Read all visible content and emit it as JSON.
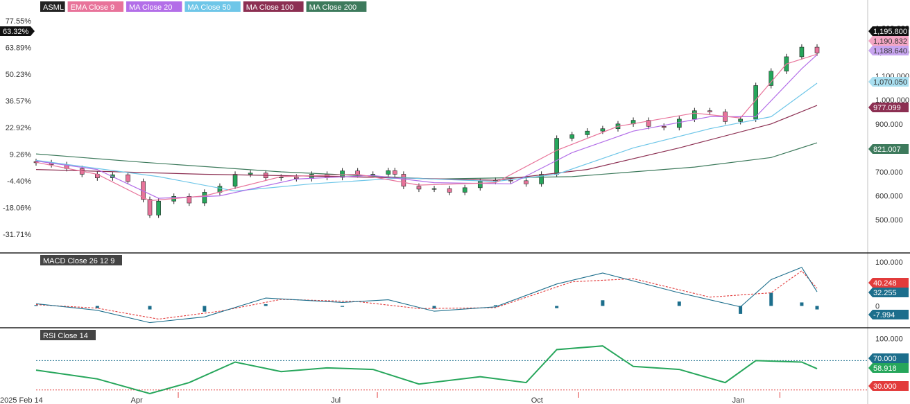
{
  "chart_data": {
    "type": "candlestick",
    "symbol": "ASML",
    "date_axis": {
      "start_label": "2025 Feb 14",
      "labels": [
        "2025 Feb 14",
        "Apr",
        "Jul",
        "Oct",
        "Jan"
      ]
    },
    "price_pane": {
      "legend": [
        {
          "name": "ASML",
          "color": "#222222"
        },
        {
          "name": "EMA Close 9",
          "color": "#e8739a"
        },
        {
          "name": "MA Close 20",
          "color": "#b36ee8"
        },
        {
          "name": "MA Close 50",
          "color": "#6ec6e8"
        },
        {
          "name": "MA Close 100",
          "color": "#8c2f52"
        },
        {
          "name": "MA Close 200",
          "color": "#3d7a5c"
        }
      ],
      "left_axis_ticks": [
        "77.55%",
        "63.89%",
        "50.23%",
        "36.57%",
        "22.92%",
        "9.26%",
        "-4.40%",
        "-18.06%",
        "-31.71%"
      ],
      "right_axis_ticks": [
        "1,300.000",
        "1,200.000",
        "1,100.000",
        "1,000.000",
        "900.000",
        "800.000",
        "700.000",
        "600.000",
        "500.000"
      ],
      "left_marker": {
        "value": "63.32%",
        "color": "#111111"
      },
      "value_badges": [
        {
          "text": "1,195.800",
          "color": "#111111",
          "text_color": "#ffffff",
          "price": 1195.8
        },
        {
          "text": "1,190.832",
          "color": "#f4a6c4",
          "text_color": "#333333",
          "price": 1190.832
        },
        {
          "text": "1,188.640",
          "color": "#c8a6f0",
          "text_color": "#333333",
          "price": 1188.64
        },
        {
          "text": "1,070.050",
          "color": "#a9dff0",
          "text_color": "#333333",
          "price": 1070.05
        },
        {
          "text": "977.099",
          "color": "#8c2f52",
          "text_color": "#ffffff",
          "price": 977.099
        },
        {
          "text": "821.007",
          "color": "#3d7a5c",
          "text_color": "#ffffff",
          "price": 821.007
        }
      ],
      "ylim": [
        440,
        1330
      ],
      "close_series": [
        [
          "2025-02-14",
          738
        ],
        [
          "2025-02-21",
          730
        ],
        [
          "2025-02-28",
          714
        ],
        [
          "2025-03-07",
          690
        ],
        [
          "2025-03-14",
          675
        ],
        [
          "2025-03-21",
          688
        ],
        [
          "2025-03-28",
          660
        ],
        [
          "2025-04-04",
          585
        ],
        [
          "2025-04-07",
          520
        ],
        [
          "2025-04-11",
          578
        ],
        [
          "2025-04-18",
          598
        ],
        [
          "2025-04-25",
          570
        ],
        [
          "2025-05-02",
          615
        ],
        [
          "2025-05-09",
          640
        ],
        [
          "2025-05-16",
          690
        ],
        [
          "2025-05-23",
          695
        ],
        [
          "2025-05-30",
          675
        ],
        [
          "2025-06-06",
          678
        ],
        [
          "2025-06-13",
          672
        ],
        [
          "2025-06-20",
          690
        ],
        [
          "2025-06-27",
          677
        ],
        [
          "2025-07-04",
          704
        ],
        [
          "2025-07-11",
          688
        ],
        [
          "2025-07-18",
          690
        ],
        [
          "2025-07-25",
          705
        ],
        [
          "2025-07-28",
          690
        ],
        [
          "2025-08-01",
          640
        ],
        [
          "2025-08-08",
          628
        ],
        [
          "2025-08-15",
          630
        ],
        [
          "2025-08-22",
          615
        ],
        [
          "2025-08-29",
          634
        ],
        [
          "2025-09-05",
          660
        ],
        [
          "2025-09-12",
          665
        ],
        [
          "2025-09-19",
          663
        ],
        [
          "2025-09-26",
          650
        ],
        [
          "2025-10-03",
          690
        ],
        [
          "2025-10-10",
          840
        ],
        [
          "2025-10-17",
          855
        ],
        [
          "2025-10-24",
          870
        ],
        [
          "2025-10-31",
          880
        ],
        [
          "2025-11-07",
          900
        ],
        [
          "2025-11-14",
          915
        ],
        [
          "2025-11-21",
          890
        ],
        [
          "2025-11-28",
          885
        ],
        [
          "2025-12-05",
          920
        ],
        [
          "2025-12-12",
          955
        ],
        [
          "2025-12-19",
          950
        ],
        [
          "2025-12-26",
          910
        ],
        [
          "2026-01-02",
          920
        ],
        [
          "2026-01-09",
          1060
        ],
        [
          "2026-01-16",
          1120
        ],
        [
          "2026-01-23",
          1180
        ],
        [
          "2026-01-30",
          1220
        ],
        [
          "2026-02-06",
          1195.8
        ]
      ],
      "ema9": [
        [
          "2025-02-14",
          740
        ],
        [
          "2025-03-14",
          690
        ],
        [
          "2025-04-07",
          580
        ],
        [
          "2025-05-02",
          600
        ],
        [
          "2025-06-06",
          680
        ],
        [
          "2025-07-11",
          690
        ],
        [
          "2025-08-08",
          645
        ],
        [
          "2025-09-12",
          655
        ],
        [
          "2025-10-10",
          790
        ],
        [
          "2025-11-07",
          890
        ],
        [
          "2025-12-12",
          945
        ],
        [
          "2026-01-02",
          925
        ],
        [
          "2026-01-23",
          1150
        ],
        [
          "2026-02-06",
          1190.832
        ]
      ],
      "ma20": [
        [
          "2025-02-14",
          745
        ],
        [
          "2025-03-14",
          710
        ],
        [
          "2025-04-11",
          590
        ],
        [
          "2025-05-09",
          600
        ],
        [
          "2025-06-13",
          670
        ],
        [
          "2025-07-18",
          685
        ],
        [
          "2025-08-15",
          655
        ],
        [
          "2025-09-19",
          650
        ],
        [
          "2025-10-17",
          780
        ],
        [
          "2025-11-14",
          870
        ],
        [
          "2025-12-19",
          930
        ],
        [
          "2026-01-09",
          930
        ],
        [
          "2026-01-30",
          1130
        ],
        [
          "2026-02-06",
          1188.64
        ]
      ],
      "ma50": [
        [
          "2025-02-14",
          748
        ],
        [
          "2025-04-11",
          680
        ],
        [
          "2025-05-16",
          620
        ],
        [
          "2025-06-20",
          650
        ],
        [
          "2025-08-01",
          675
        ],
        [
          "2025-09-12",
          660
        ],
        [
          "2025-10-10",
          690
        ],
        [
          "2025-11-14",
          800
        ],
        [
          "2025-12-19",
          880
        ],
        [
          "2026-01-16",
          930
        ],
        [
          "2026-02-06",
          1070.05
        ]
      ],
      "ma100": [
        [
          "2025-02-14",
          710
        ],
        [
          "2025-05-02",
          690
        ],
        [
          "2025-07-04",
          680
        ],
        [
          "2025-09-12",
          665
        ],
        [
          "2025-10-24",
          710
        ],
        [
          "2025-12-05",
          800
        ],
        [
          "2026-01-16",
          900
        ],
        [
          "2026-02-06",
          977.099
        ]
      ],
      "ma200": [
        [
          "2025-02-14",
          775
        ],
        [
          "2025-04-04",
          740
        ],
        [
          "2025-06-06",
          700
        ],
        [
          "2025-08-15",
          670
        ],
        [
          "2025-10-17",
          680
        ],
        [
          "2025-12-12",
          720
        ],
        [
          "2026-01-16",
          760
        ],
        [
          "2026-02-06",
          821.007
        ]
      ]
    },
    "macd_pane": {
      "legend": "MACD Close 26 12 9",
      "right_axis_ticks": [
        "100.000",
        "0"
      ],
      "value_badges": [
        {
          "text": "40.248",
          "color": "#e23b3b",
          "text_color": "#ffffff",
          "value": 40.248
        },
        {
          "text": "32.255",
          "color": "#1c6e8c",
          "text_color": "#ffffff",
          "value": 32.255
        },
        {
          "text": "-7.994",
          "color": "#1c6e8c",
          "text_color": "#ffffff",
          "value": -7.994
        }
      ],
      "ylim": [
        -45,
        105
      ],
      "macd": [
        [
          "2025-02-14",
          5
        ],
        [
          "2025-03-14",
          -10
        ],
        [
          "2025-04-07",
          -38
        ],
        [
          "2025-05-02",
          -25
        ],
        [
          "2025-05-30",
          18
        ],
        [
          "2025-07-04",
          8
        ],
        [
          "2025-07-25",
          14
        ],
        [
          "2025-08-15",
          -12
        ],
        [
          "2025-09-12",
          -2
        ],
        [
          "2025-10-10",
          50
        ],
        [
          "2025-10-31",
          75
        ],
        [
          "2025-12-05",
          30
        ],
        [
          "2026-01-02",
          -2
        ],
        [
          "2026-01-16",
          60
        ],
        [
          "2026-01-30",
          88
        ],
        [
          "2026-02-06",
          32.255
        ]
      ],
      "signal": [
        [
          "2025-02-14",
          3
        ],
        [
          "2025-03-14",
          -5
        ],
        [
          "2025-04-11",
          -30
        ],
        [
          "2025-05-09",
          -12
        ],
        [
          "2025-06-06",
          15
        ],
        [
          "2025-07-11",
          10
        ],
        [
          "2025-08-08",
          -6
        ],
        [
          "2025-09-12",
          -4
        ],
        [
          "2025-10-17",
          55
        ],
        [
          "2025-11-14",
          62
        ],
        [
          "2025-12-19",
          20
        ],
        [
          "2026-01-16",
          30
        ],
        [
          "2026-01-30",
          80
        ],
        [
          "2026-02-06",
          40.248
        ]
      ],
      "histogram": [
        [
          "2025-02-14",
          2
        ],
        [
          "2025-03-14",
          -5
        ],
        [
          "2025-04-07",
          -8
        ],
        [
          "2025-05-02",
          -13
        ],
        [
          "2025-05-30",
          4
        ],
        [
          "2025-07-04",
          -2
        ],
        [
          "2025-08-15",
          -6
        ],
        [
          "2025-09-12",
          2
        ],
        [
          "2025-10-10",
          -5
        ],
        [
          "2025-10-31",
          13
        ],
        [
          "2025-12-05",
          10
        ],
        [
          "2026-01-02",
          -18
        ],
        [
          "2026-01-16",
          30
        ],
        [
          "2026-01-30",
          8
        ],
        [
          "2026-02-06",
          -7.994
        ]
      ]
    },
    "rsi_pane": {
      "legend": "RSI Close 14",
      "right_axis_ticks": [
        "100.000",
        "70.000",
        "30.000"
      ],
      "levels": [
        70,
        30
      ],
      "value_badges": [
        {
          "text": "70.000",
          "color": "#1c6e8c",
          "text_color": "#ffffff",
          "value": 70
        },
        {
          "text": "58.918",
          "color": "#26a65b",
          "text_color": "#ffffff",
          "value": 58.918
        },
        {
          "text": "30.000",
          "color": "#e23b3b",
          "text_color": "#ffffff",
          "value": 30
        }
      ],
      "ylim": [
        25,
        110
      ],
      "rsi": [
        [
          "2025-02-14",
          57
        ],
        [
          "2025-03-14",
          45
        ],
        [
          "2025-04-07",
          25
        ],
        [
          "2025-04-25",
          40
        ],
        [
          "2025-05-16",
          68
        ],
        [
          "2025-06-06",
          55
        ],
        [
          "2025-06-27",
          60
        ],
        [
          "2025-07-18",
          58
        ],
        [
          "2025-08-08",
          38
        ],
        [
          "2025-09-05",
          48
        ],
        [
          "2025-09-26",
          40
        ],
        [
          "2025-10-10",
          85
        ],
        [
          "2025-10-31",
          90
        ],
        [
          "2025-11-14",
          62
        ],
        [
          "2025-12-05",
          58
        ],
        [
          "2025-12-26",
          40
        ],
        [
          "2026-01-09",
          70
        ],
        [
          "2026-01-30",
          68
        ],
        [
          "2026-02-06",
          58.918
        ]
      ]
    }
  },
  "colors": {
    "up": "#26a65b",
    "down": "#e8739a",
    "grid_border": "#222222",
    "macd_line": "#1c6e8c",
    "signal_line": "#e23b3b",
    "rsi_line": "#26a65b"
  }
}
